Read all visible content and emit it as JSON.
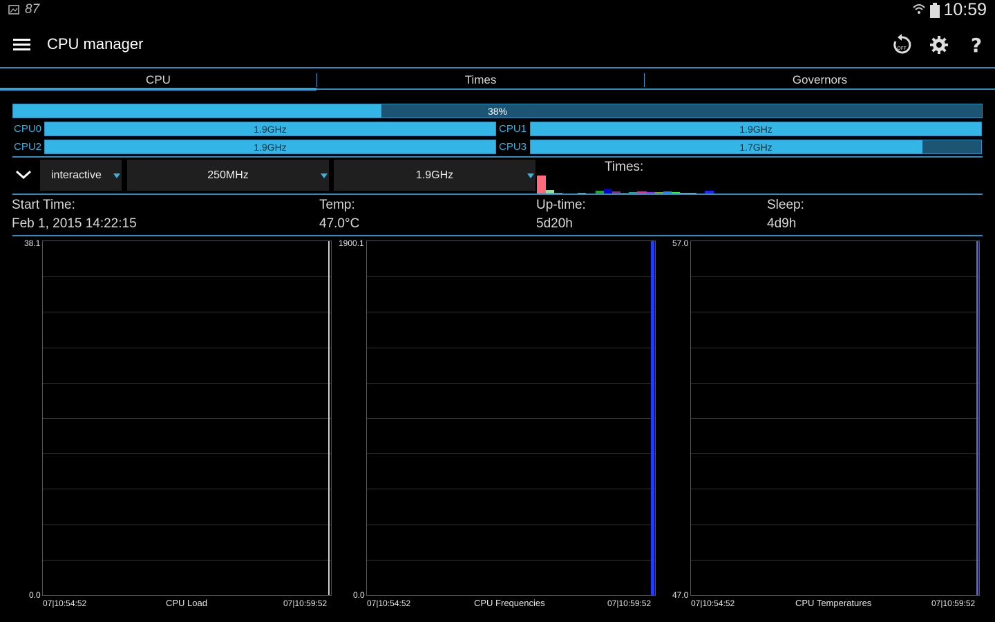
{
  "status_bar": {
    "left_number": "87",
    "time": "10:59"
  },
  "action_bar": {
    "title": "CPU manager"
  },
  "tabs": [
    {
      "label": "CPU"
    },
    {
      "label": "Times"
    },
    {
      "label": "Governors"
    }
  ],
  "overall": {
    "percent": 38,
    "label": "38%"
  },
  "cores": [
    {
      "name": "CPU0",
      "freq": "1.9GHz",
      "fill": 1.0
    },
    {
      "name": "CPU1",
      "freq": "1.9GHz",
      "fill": 1.0
    },
    {
      "name": "CPU2",
      "freq": "1.9GHz",
      "fill": 1.0
    },
    {
      "name": "CPU3",
      "freq": "1.7GHz",
      "fill": 0.87
    }
  ],
  "controls": {
    "governor": "interactive",
    "min_freq": "250MHz",
    "max_freq": "1.9GHz",
    "times_label": "Times:"
  },
  "info": {
    "start_label": "Start Time:",
    "start_value": "Feb 1, 2015 14:22:15",
    "temp_label": "Temp:",
    "temp_value": "47.0°C",
    "uptime_label": "Up-time:",
    "uptime_value": "5d20h",
    "sleep_label": "Sleep:",
    "sleep_value": "4d9h"
  },
  "graphs": [
    {
      "caption": "CPU Load",
      "y_max": "38.1",
      "y_min": "0.0",
      "x_start": "07|10:54:52",
      "x_end": "07|10:59:52",
      "line_color": "#cccccc"
    },
    {
      "caption": "CPU Frequencies",
      "y_max": "1900.1",
      "y_min": "0.0",
      "x_start": "07|10:54:52",
      "x_end": "07|10:59:52",
      "line_color": "#1f3cff"
    },
    {
      "caption": "CPU Temperatures",
      "y_max": "57.0",
      "y_min": "47.0",
      "x_start": "07|10:54:52",
      "x_end": "07|10:59:52",
      "line_color": "#5a5aff"
    }
  ],
  "colors": {
    "accent": "#33b5e5",
    "bar_bg": "#1c5574"
  }
}
